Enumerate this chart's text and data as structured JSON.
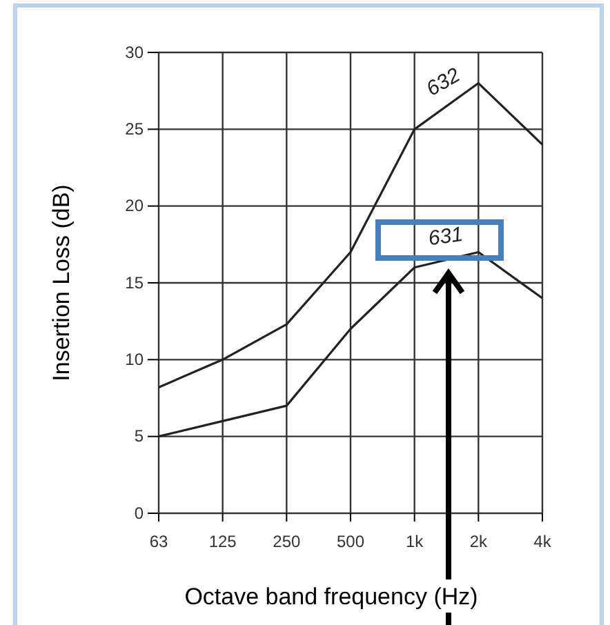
{
  "chart_data": {
    "type": "line",
    "xlabel": "Octave band frequency (Hz)",
    "ylabel": "Insertion Loss (dB)",
    "categories": [
      "63",
      "125",
      "250",
      "500",
      "1k",
      "2k",
      "4k"
    ],
    "series": [
      {
        "name": "632",
        "color": "#222222",
        "values": [
          8.2,
          10,
          12.3,
          17,
          25,
          28,
          24
        ]
      },
      {
        "name": "631",
        "color": "#222222",
        "values": [
          5,
          6,
          7,
          12,
          16,
          17,
          14
        ]
      }
    ],
    "ylim": [
      0,
      30
    ],
    "yticks": [
      0,
      5,
      10,
      15,
      20,
      25,
      30
    ],
    "grid": true,
    "marker": "none",
    "line_style": "solid"
  }
}
